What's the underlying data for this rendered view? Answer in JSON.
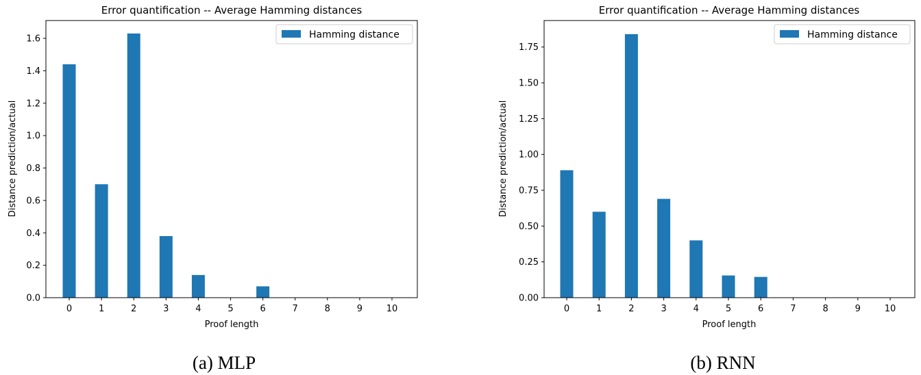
{
  "chart_data": [
    {
      "type": "bar",
      "title": "Error quantification -- Average Hamming distances",
      "xlabel": "Proof length",
      "ylabel": "Distance prediction/actual",
      "categories": [
        "0",
        "1",
        "2",
        "3",
        "4",
        "5",
        "6",
        "7",
        "8",
        "9",
        "10"
      ],
      "series": [
        {
          "name": "Hamming distance",
          "values": [
            1.44,
            0.7,
            1.63,
            0.38,
            0.14,
            0.0,
            0.07,
            0.0,
            0.0,
            0.0,
            0.0
          ]
        }
      ],
      "ylim": [
        0,
        1.71
      ],
      "yticks": [
        "0.0",
        "0.2",
        "0.4",
        "0.6",
        "0.8",
        "1.0",
        "1.2",
        "1.4",
        "1.6"
      ],
      "legend_position": "top-right",
      "grid": false,
      "bar_color": "#1f77b4",
      "caption": "(a) MLP"
    },
    {
      "type": "bar",
      "title": "Error quantification -- Average Hamming distances",
      "xlabel": "Proof length",
      "ylabel": "Distance prediction/actual",
      "categories": [
        "0",
        "1",
        "2",
        "3",
        "4",
        "5",
        "6",
        "7",
        "8",
        "9",
        "10"
      ],
      "series": [
        {
          "name": "Hamming distance",
          "values": [
            0.89,
            0.6,
            1.84,
            0.69,
            0.4,
            0.155,
            0.145,
            0.0,
            0.0,
            0.0,
            0.0
          ]
        }
      ],
      "ylim": [
        0,
        1.935
      ],
      "yticks": [
        "0.00",
        "0.25",
        "0.50",
        "0.75",
        "1.00",
        "1.25",
        "1.50",
        "1.75"
      ],
      "legend_position": "top-right",
      "grid": false,
      "bar_color": "#1f77b4",
      "caption": "(b) RNN"
    }
  ]
}
